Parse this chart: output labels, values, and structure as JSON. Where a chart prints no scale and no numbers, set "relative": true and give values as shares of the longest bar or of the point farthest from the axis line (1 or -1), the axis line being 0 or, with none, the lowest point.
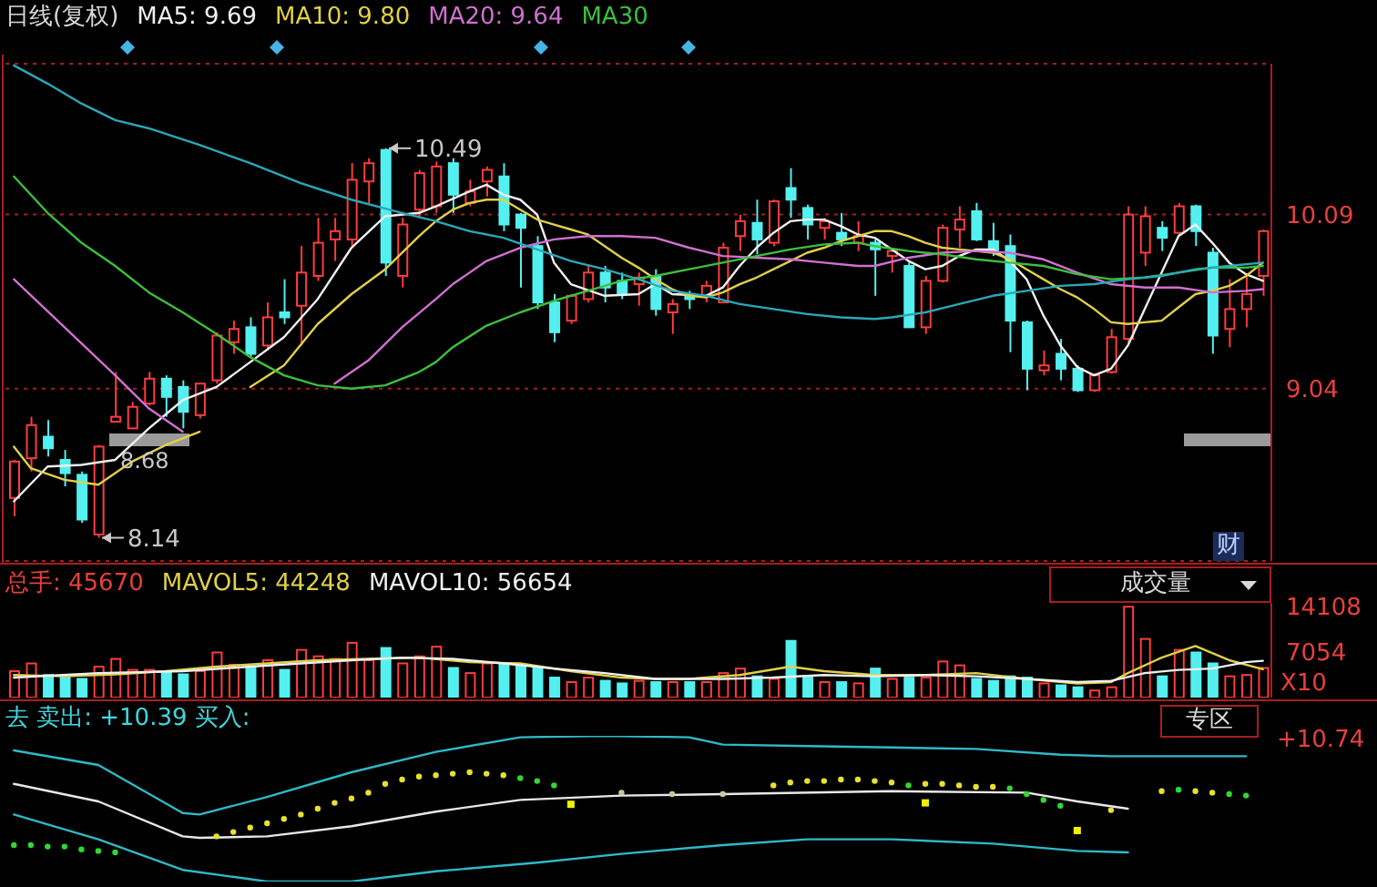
{
  "chart_data": [
    {
      "type": "candlestick",
      "title": "日线(复权)",
      "tick_labels": "y",
      "grid": "y",
      "legend": "top left",
      "ylim": [
        8.0,
        11.0
      ],
      "yticks": [
        9.04,
        10.09
      ],
      "categories": [
        null,
        null,
        null,
        null,
        null,
        null,
        null,
        null,
        null,
        null,
        null,
        null,
        null,
        null,
        null,
        null,
        null,
        null,
        null,
        null,
        null,
        null,
        null,
        null,
        null,
        null,
        null,
        null,
        null,
        null,
        null,
        null,
        null,
        null,
        null,
        null,
        null,
        null,
        null,
        null,
        null,
        null,
        null,
        null,
        null,
        null,
        null,
        null,
        null,
        null,
        null,
        null,
        null,
        null,
        null,
        null,
        null,
        null,
        null,
        null,
        null,
        null,
        null,
        null,
        null,
        null,
        null,
        null,
        null,
        null,
        null,
        null,
        null,
        null,
        null
      ],
      "ohlc": [
        [
          8.38,
          8.61,
          8.27,
          8.6
        ],
        [
          8.62,
          8.87,
          8.54,
          8.82
        ],
        [
          8.75,
          8.85,
          8.63,
          8.68
        ],
        [
          8.61,
          8.67,
          8.45,
          8.53
        ],
        [
          8.52,
          8.54,
          8.23,
          8.25
        ],
        [
          8.16,
          8.7,
          8.14,
          8.69
        ],
        [
          8.84,
          9.14,
          8.84,
          8.87
        ],
        [
          8.8,
          8.96,
          8.8,
          8.93
        ],
        [
          8.95,
          9.14,
          8.94,
          9.1
        ],
        [
          9.1,
          9.12,
          8.87,
          8.99
        ],
        [
          9.05,
          9.09,
          8.8,
          8.9
        ],
        [
          8.88,
          9.07,
          8.86,
          9.07
        ],
        [
          9.09,
          9.38,
          9.07,
          9.36
        ],
        [
          9.32,
          9.45,
          9.25,
          9.4
        ],
        [
          9.41,
          9.47,
          9.23,
          9.25
        ],
        [
          9.3,
          9.56,
          9.27,
          9.47
        ],
        [
          9.5,
          9.7,
          9.43,
          9.47
        ],
        [
          9.54,
          9.9,
          9.3,
          9.74
        ],
        [
          9.72,
          10.07,
          9.69,
          9.92
        ],
        [
          9.94,
          10.07,
          9.81,
          9.99
        ],
        [
          9.94,
          10.4,
          9.9,
          10.3
        ],
        [
          10.29,
          10.43,
          10.16,
          10.4
        ],
        [
          10.48,
          10.49,
          9.72,
          9.8
        ],
        [
          9.72,
          10.07,
          9.65,
          10.03
        ],
        [
          10.12,
          10.36,
          10.07,
          10.34
        ],
        [
          10.14,
          10.41,
          10.1,
          10.38
        ],
        [
          10.4,
          10.43,
          10.1,
          10.21
        ],
        [
          10.16,
          10.3,
          10.14,
          10.23
        ],
        [
          10.29,
          10.38,
          10.2,
          10.36
        ],
        [
          10.32,
          10.4,
          9.99,
          10.03
        ],
        [
          10.09,
          10.1,
          9.65,
          10.01
        ],
        [
          9.9,
          9.96,
          9.52,
          9.56
        ],
        [
          9.56,
          9.61,
          9.32,
          9.38
        ],
        [
          9.45,
          9.61,
          9.43,
          9.6
        ],
        [
          9.58,
          9.78,
          9.56,
          9.74
        ],
        [
          9.74,
          9.78,
          9.56,
          9.65
        ],
        [
          9.69,
          9.74,
          9.58,
          9.61
        ],
        [
          9.67,
          9.74,
          9.54,
          9.71
        ],
        [
          9.72,
          9.76,
          9.48,
          9.52
        ],
        [
          9.5,
          9.58,
          9.37,
          9.55
        ],
        [
          9.61,
          9.63,
          9.52,
          9.58
        ],
        [
          9.6,
          9.69,
          9.56,
          9.66
        ],
        [
          9.56,
          9.92,
          9.56,
          9.89
        ],
        [
          9.96,
          10.09,
          9.87,
          10.05
        ],
        [
          10.04,
          10.18,
          9.85,
          9.94
        ],
        [
          9.92,
          10.18,
          9.9,
          10.17
        ],
        [
          10.25,
          10.37,
          10.07,
          10.18
        ],
        [
          10.13,
          10.15,
          9.94,
          10.03
        ],
        [
          10.01,
          10.07,
          9.94,
          10.05
        ],
        [
          9.98,
          10.1,
          9.9,
          9.94
        ],
        [
          9.92,
          10.05,
          9.87,
          9.96
        ],
        [
          9.92,
          9.94,
          9.6,
          9.88
        ],
        [
          9.84,
          9.89,
          9.74,
          9.87
        ],
        [
          9.78,
          9.8,
          9.41,
          9.41
        ],
        [
          9.41,
          9.72,
          9.37,
          9.69
        ],
        [
          9.69,
          10.03,
          9.68,
          10.01
        ],
        [
          10.0,
          10.14,
          9.89,
          10.06
        ],
        [
          10.11,
          10.16,
          9.93,
          9.94
        ],
        [
          9.93,
          10.04,
          9.84,
          9.87
        ],
        [
          9.9,
          9.97,
          9.26,
          9.45
        ],
        [
          9.44,
          9.45,
          9.03,
          9.16
        ],
        [
          9.15,
          9.27,
          9.12,
          9.18
        ],
        [
          9.25,
          9.34,
          9.09,
          9.16
        ],
        [
          9.16,
          9.18,
          9.02,
          9.03
        ],
        [
          9.03,
          9.13,
          9.02,
          9.12
        ],
        [
          9.14,
          9.4,
          9.13,
          9.35
        ],
        [
          9.34,
          10.14,
          9.32,
          10.09
        ],
        [
          9.86,
          10.14,
          9.78,
          10.08
        ],
        [
          10.01,
          10.05,
          9.87,
          9.95
        ],
        [
          9.98,
          10.16,
          9.96,
          10.14
        ],
        [
          10.14,
          10.15,
          9.9,
          9.99
        ],
        [
          9.86,
          9.89,
          9.25,
          9.36
        ],
        [
          9.4,
          9.7,
          9.29,
          9.52
        ],
        [
          9.52,
          9.72,
          9.41,
          9.61
        ],
        [
          9.72,
          10.0,
          9.6,
          9.99
        ]
      ],
      "colors": [
        "#ff3c3c",
        "#ff3c3c",
        "#54f0f0",
        "#54f0f0",
        "#54f0f0",
        "#ff3c3c",
        "#ff3c3c",
        "#ff3c3c",
        "#ff3c3c",
        "#54f0f0",
        "#54f0f0",
        "#ff3c3c",
        "#ff3c3c",
        "#ff3c3c",
        "#54f0f0",
        "#ff3c3c",
        "#54f0f0",
        "#ff3c3c",
        "#ff3c3c",
        "#ff3c3c",
        "#ff3c3c",
        "#ff3c3c",
        "#54f0f0",
        "#ff3c3c",
        "#ff3c3c",
        "#ff3c3c",
        "#54f0f0",
        "#ff3c3c",
        "#ff3c3c",
        "#54f0f0",
        "#54f0f0",
        "#54f0f0",
        "#54f0f0",
        "#ff3c3c",
        "#ff3c3c",
        "#54f0f0",
        "#54f0f0",
        "#ff3c3c",
        "#54f0f0",
        "#ff3c3c",
        "#54f0f0",
        "#ff3c3c",
        "#ff3c3c",
        "#ff3c3c",
        "#54f0f0",
        "#ff3c3c",
        "#54f0f0",
        "#54f0f0",
        "#ff3c3c",
        "#54f0f0",
        "#ff3c3c",
        "#54f0f0",
        "#ff3c3c",
        "#54f0f0",
        "#ff3c3c",
        "#ff3c3c",
        "#ff3c3c",
        "#54f0f0",
        "#54f0f0",
        "#54f0f0",
        "#54f0f0",
        "#ff3c3c",
        "#54f0f0",
        "#54f0f0",
        "#ff3c3c",
        "#ff3c3c",
        "#ff3c3c",
        "#ff3c3c",
        "#54f0f0",
        "#ff3c3c",
        "#54f0f0",
        "#54f0f0",
        "#ff3c3c",
        "#ff3c3c",
        "#ff3c3c"
      ],
      "series": [
        {
          "type": "line",
          "name": "MA5: 9.69",
          "color": "#f0f0f0",
          "values": [
            8.36,
            null,
            8.57,
            null,
            8.58,
            null,
            8.61,
            null,
            8.8,
            null,
            8.97,
            null,
            9.05,
            null,
            9.2,
            null,
            9.35,
            null,
            9.58,
            null,
            9.89,
            null,
            10.08,
            null,
            10.1,
            10.14,
            null,
            10.23,
            10.27,
            10.21,
            10.18,
            10.09,
            9.8,
            9.67,
            null,
            9.6,
            null,
            9.61,
            9.67,
            9.61,
            null,
            9.6,
            9.65,
            9.78,
            9.89,
            9.98,
            10.05,
            10.06,
            10.06,
            10.02,
            9.97,
            9.95,
            null,
            9.81,
            9.76,
            9.78,
            9.84,
            9.88,
            9.88,
            9.81,
            9.7,
            9.48,
            9.3,
            9.17,
            9.12,
            9.16,
            9.3,
            9.52,
            9.74,
            9.96,
            10.03,
            9.92,
            9.8,
            9.73,
            9.69
          ]
        },
        {
          "type": "line",
          "name": "MA10: 9.80",
          "color": "#e0d048",
          "values": [
            null,
            null,
            null,
            null,
            null,
            null,
            null,
            null,
            null,
            null,
            null,
            null,
            null,
            null,
            9.05,
            null,
            9.18,
            null,
            9.43,
            null,
            9.61,
            null,
            9.76,
            null,
            9.96,
            10.05,
            10.12,
            10.16,
            10.18,
            10.18,
            10.12,
            10.06,
            10.03,
            10.0,
            9.97,
            9.9,
            9.83,
            9.77,
            9.7,
            9.64,
            9.6,
            9.59,
            9.62,
            9.67,
            9.71,
            9.76,
            9.81,
            9.86,
            9.89,
            9.93,
            9.96,
            9.99,
            9.99,
            9.96,
            9.92,
            9.89,
            9.88,
            9.87,
            9.86,
            9.82,
            9.76,
            9.7,
            9.64,
            9.59,
            9.52,
            9.44,
            9.43,
            9.44,
            9.45,
            9.53,
            9.61,
            9.63,
            9.66,
            9.72,
            9.8
          ]
        },
        {
          "type": "line",
          "color": "#e0d048",
          "values": [
            8.69,
            8.56,
            null,
            8.49,
            null,
            8.46,
            null,
            8.6,
            null,
            8.7,
            null,
            8.78,
            null,
            null,
            null,
            null,
            null,
            null,
            null,
            null,
            null,
            null,
            null,
            null,
            null,
            null,
            null,
            null,
            null,
            null,
            null,
            null,
            null,
            null,
            null,
            null,
            null,
            null,
            null,
            null,
            null,
            null,
            null,
            null,
            null,
            null,
            null,
            null,
            null,
            null,
            null,
            null,
            null,
            null,
            null,
            null,
            null,
            null,
            null,
            null,
            null,
            null,
            null,
            null,
            null,
            null,
            null,
            null,
            null,
            null,
            null,
            null,
            null,
            null,
            null
          ]
        },
        {
          "type": "line",
          "name": "MA20: 9.64",
          "color": "#d070d0",
          "values": [
            null,
            null,
            null,
            null,
            null,
            null,
            null,
            null,
            null,
            null,
            null,
            null,
            null,
            null,
            null,
            null,
            null,
            null,
            null,
            9.07,
            null,
            9.21,
            null,
            9.41,
            null,
            9.58,
            9.67,
            null,
            9.81,
            null,
            9.89,
            null,
            9.94,
            null,
            9.96,
            null,
            9.96,
            null,
            9.95,
            null,
            9.89,
            null,
            9.84,
            null,
            9.83,
            null,
            9.82,
            null,
            9.8,
            null,
            9.78,
            9.78,
            null,
            9.83,
            null,
            9.86,
            null,
            9.87,
            null,
            9.86,
            null,
            9.82,
            null,
            9.74,
            null,
            9.67,
            null,
            9.65,
            null,
            9.65,
            null,
            9.62,
            null,
            9.63,
            9.64
          ]
        },
        {
          "type": "line",
          "color": "#d070d0",
          "values": [
            9.7,
            null,
            null,
            9.41,
            null,
            null,
            9.12,
            null,
            8.92,
            null,
            8.78,
            null,
            null,
            null,
            null,
            null,
            null,
            null,
            null,
            null,
            null,
            null,
            null,
            null,
            null,
            null,
            null,
            null,
            null,
            null,
            null,
            null,
            null,
            null,
            null,
            null,
            null,
            null,
            null,
            null,
            null,
            null,
            null,
            null,
            null,
            null,
            null,
            null,
            null,
            null,
            null,
            null,
            null,
            null,
            null,
            null,
            null,
            null,
            null,
            null,
            null,
            null,
            null,
            null,
            null,
            null,
            null,
            null,
            null,
            null,
            null,
            null,
            null,
            null,
            null
          ]
        },
        {
          "type": "line",
          "name": "MA30",
          "color": "#3cc03c",
          "values": [
            10.32,
            null,
            10.1,
            null,
            9.92,
            null,
            9.78,
            null,
            9.62,
            null,
            9.5,
            null,
            9.37,
            null,
            9.23,
            null,
            9.12,
            null,
            9.06,
            null,
            9.04,
            null,
            9.06,
            null,
            9.14,
            9.2,
            9.29,
            null,
            9.42,
            null,
            9.5,
            null,
            9.57,
            null,
            9.63,
            null,
            9.69,
            null,
            9.72,
            null,
            9.76,
            null,
            9.8,
            null,
            9.84,
            null,
            9.88,
            null,
            9.91,
            null,
            9.92,
            9.9,
            null,
            9.87,
            null,
            9.85,
            null,
            9.82,
            null,
            9.8,
            null,
            9.78,
            null,
            9.73,
            null,
            9.7,
            null,
            9.71,
            null,
            9.74,
            null,
            9.77,
            null,
            9.77,
            9.78
          ]
        },
        {
          "type": "line",
          "color": "#2aa8b8",
          "values": [
            10.99,
            null,
            10.88,
            null,
            10.76,
            null,
            10.66,
            null,
            10.61,
            null,
            null,
            10.51,
            null,
            null,
            10.4,
            null,
            null,
            10.28,
            null,
            null,
            10.18,
            null,
            null,
            10.1,
            null,
            10.05,
            null,
            9.99,
            null,
            9.95,
            null,
            9.88,
            null,
            9.81,
            null,
            9.76,
            null,
            9.7,
            null,
            9.63,
            null,
            9.6,
            null,
            9.55,
            null,
            9.52,
            null,
            9.49,
            null,
            9.47,
            null,
            9.46,
            9.47,
            null,
            9.5,
            null,
            9.55,
            null,
            9.6,
            null,
            9.63,
            null,
            9.66,
            null,
            9.67,
            null,
            9.7,
            null,
            9.72,
            null,
            9.76,
            null,
            9.78,
            null,
            9.8
          ]
        }
      ],
      "annotations": [
        "10.49",
        "8.14",
        "8.68",
        "财"
      ]
    },
    {
      "type": "bar",
      "title": "总手: 45670",
      "ylabel": "X10",
      "tick_labels": "y",
      "legend": "top left",
      "ylim": [
        0,
        14700
      ],
      "yticks": [
        7054,
        14108
      ],
      "categories": [
        null,
        null,
        null,
        null,
        null,
        null,
        null,
        null,
        null,
        null,
        null,
        null,
        null,
        null,
        null,
        null,
        null,
        null,
        null,
        null,
        null,
        null,
        null,
        null,
        null,
        null,
        null,
        null,
        null,
        null,
        null,
        null,
        null,
        null,
        null,
        null,
        null,
        null,
        null,
        null,
        null,
        null,
        null,
        null,
        null,
        null,
        null,
        null,
        null,
        null,
        null,
        null,
        null,
        null,
        null,
        null,
        null,
        null,
        null,
        null,
        null,
        null,
        null,
        null,
        null,
        null,
        null,
        null,
        null,
        null,
        null,
        null,
        null,
        null,
        null
      ],
      "series": [
        {
          "values": [
            4100,
            5300,
            3500,
            3100,
            2900,
            4800,
            6000,
            4300,
            4300,
            4100,
            3600,
            4100,
            7000,
            5100,
            4800,
            5800,
            4300,
            7400,
            6400,
            6000,
            8500,
            5800,
            7700,
            5300,
            6400,
            7900,
            4600,
            3800,
            5300,
            5300,
            5100,
            4800,
            3100,
            2400,
            3100,
            2600,
            2200,
            2600,
            2400,
            2400,
            2400,
            2400,
            3800,
            4500,
            3300,
            2900,
            8800,
            3100,
            2400,
            2400,
            2200,
            4500,
            2900,
            3100,
            3100,
            5600,
            5000,
            2900,
            2600,
            3300,
            3100,
            2200,
            1900,
            1600,
            1100,
            1600,
            14100,
            9100,
            3300,
            7400,
            7000,
            5300,
            3300,
            3500,
            4600
          ],
          "colors": [
            "#ff3c3c",
            "#ff3c3c",
            "#54f0f0",
            "#54f0f0",
            "#54f0f0",
            "#ff3c3c",
            "#ff3c3c",
            "#ff3c3c",
            "#ff3c3c",
            "#54f0f0",
            "#54f0f0",
            "#ff3c3c",
            "#ff3c3c",
            "#ff3c3c",
            "#54f0f0",
            "#ff3c3c",
            "#54f0f0",
            "#ff3c3c",
            "#ff3c3c",
            "#ff3c3c",
            "#ff3c3c",
            "#ff3c3c",
            "#54f0f0",
            "#ff3c3c",
            "#ff3c3c",
            "#ff3c3c",
            "#54f0f0",
            "#ff3c3c",
            "#ff3c3c",
            "#54f0f0",
            "#54f0f0",
            "#54f0f0",
            "#54f0f0",
            "#ff3c3c",
            "#ff3c3c",
            "#54f0f0",
            "#54f0f0",
            "#ff3c3c",
            "#54f0f0",
            "#ff3c3c",
            "#54f0f0",
            "#ff3c3c",
            "#ff3c3c",
            "#ff3c3c",
            "#54f0f0",
            "#ff3c3c",
            "#54f0f0",
            "#54f0f0",
            "#ff3c3c",
            "#54f0f0",
            "#ff3c3c",
            "#54f0f0",
            "#ff3c3c",
            "#54f0f0",
            "#ff3c3c",
            "#ff3c3c",
            "#ff3c3c",
            "#54f0f0",
            "#54f0f0",
            "#54f0f0",
            "#54f0f0",
            "#ff3c3c",
            "#54f0f0",
            "#54f0f0",
            "#ff3c3c",
            "#ff3c3c",
            "#ff3c3c",
            "#ff3c3c",
            "#54f0f0",
            "#ff3c3c",
            "#54f0f0",
            "#54f0f0",
            "#ff3c3c",
            "#ff3c3c",
            "#ff3c3c"
          ]
        },
        {
          "type": "line",
          "name": "MAVOL5: 44248",
          "color": "#e0d048",
          "values": [
            3500,
            null,
            null,
            3300,
            null,
            null,
            3600,
            null,
            null,
            4100,
            null,
            null,
            4800,
            null,
            null,
            5300,
            null,
            null,
            5800,
            null,
            null,
            6000,
            null,
            null,
            6200,
            null,
            null,
            5500,
            null,
            null,
            5300,
            null,
            null,
            4100,
            null,
            null,
            3100,
            null,
            2900,
            null,
            2900,
            null,
            null,
            3500,
            null,
            null,
            4800,
            null,
            4100,
            null,
            null,
            3500,
            null,
            null,
            3500,
            null,
            null,
            3800,
            null,
            null,
            2900,
            null,
            null,
            2200,
            null,
            2400,
            3800,
            null,
            6200,
            null,
            8000,
            null,
            5800,
            null,
            4400
          ]
        },
        {
          "type": "line",
          "name": "MAVOL10: 56654",
          "color": "#f0f0f0",
          "values": [
            3100,
            null,
            null,
            null,
            null,
            3800,
            null,
            null,
            null,
            null,
            4100,
            null,
            null,
            null,
            4800,
            null,
            null,
            5300,
            null,
            null,
            5800,
            null,
            null,
            6200,
            null,
            null,
            6000,
            null,
            null,
            5300,
            null,
            null,
            4500,
            null,
            null,
            3800,
            null,
            null,
            2900,
            null,
            null,
            null,
            2900,
            null,
            null,
            3100,
            null,
            null,
            3500,
            null,
            null,
            3300,
            null,
            null,
            3500,
            null,
            null,
            3300,
            null,
            null,
            2900,
            null,
            null,
            2400,
            null,
            2600,
            null,
            3800,
            null,
            4300,
            null,
            4500,
            null,
            5500,
            5700
          ]
        }
      ],
      "annotations": [
        "成交量"
      ]
    },
    {
      "type": "line",
      "title": "去 卖出: +10.39 买入:",
      "relative": true,
      "tick_labels": false,
      "categories": [
        null,
        null,
        null,
        null,
        null,
        null,
        null,
        null,
        null,
        null,
        null,
        null,
        null,
        null,
        null,
        null,
        null,
        null,
        null,
        null,
        null,
        null,
        null,
        null,
        null,
        null,
        null,
        null,
        null,
        null,
        null,
        null,
        null,
        null,
        null,
        null,
        null,
        null,
        null,
        null,
        null,
        null,
        null,
        null,
        null,
        null,
        null,
        null,
        null,
        null,
        null,
        null,
        null,
        null,
        null,
        null,
        null,
        null,
        null,
        null,
        null,
        null,
        null,
        null,
        null,
        null,
        null,
        null,
        null,
        null,
        null,
        null,
        null,
        null,
        null
      ],
      "series": [
        {
          "color": "#30b8c8",
          "values": [
            0.9,
            null,
            null,
            null,
            null,
            0.8,
            null,
            null,
            null,
            null,
            0.47,
            0.46,
            null,
            null,
            null,
            0.58,
            null,
            null,
            null,
            null,
            0.75,
            null,
            null,
            null,
            null,
            0.89,
            null,
            null,
            null,
            null,
            0.99,
            null,
            null,
            null,
            null,
            1.0,
            null,
            null,
            null,
            null,
            0.99,
            null,
            0.94,
            null,
            null,
            null,
            null,
            0.93,
            null,
            null,
            null,
            null,
            0.92,
            null,
            null,
            null,
            null,
            0.91,
            null,
            null,
            null,
            null,
            0.87,
            null,
            null,
            0.86,
            null,
            null,
            null,
            null,
            null,
            null,
            null,
            0.86,
            null
          ]
        },
        {
          "color": "#e8e8e8",
          "values": [
            0.67,
            null,
            null,
            null,
            null,
            0.55,
            null,
            null,
            null,
            null,
            0.31,
            0.3,
            null,
            null,
            null,
            0.31,
            null,
            null,
            null,
            null,
            0.38,
            null,
            null,
            null,
            null,
            0.48,
            null,
            null,
            null,
            null,
            0.56,
            null,
            null,
            null,
            null,
            null,
            0.59,
            null,
            null,
            null,
            null,
            null,
            0.6,
            null,
            null,
            null,
            null,
            null,
            null,
            null,
            null,
            null,
            0.62,
            null,
            null,
            null,
            null,
            null,
            null,
            null,
            0.61,
            null,
            null,
            0.55,
            null,
            null,
            0.5,
            null,
            null,
            null,
            null,
            null,
            null,
            null,
            null
          ]
        },
        {
          "color": "#30b8c8",
          "values": [
            0.46,
            null,
            null,
            null,
            null,
            0.29,
            null,
            null,
            null,
            null,
            0.08,
            null,
            null,
            null,
            null,
            0,
            null,
            null,
            null,
            null,
            0,
            null,
            null,
            null,
            null,
            0.07,
            null,
            null,
            null,
            null,
            null,
            0.13,
            null,
            null,
            null,
            null,
            0.19,
            null,
            null,
            null,
            null,
            null,
            0.25,
            null,
            null,
            null,
            null,
            0.29,
            null,
            null,
            null,
            null,
            0.29,
            null,
            null,
            null,
            null,
            null,
            0.26,
            null,
            null,
            null,
            null,
            0.21,
            null,
            null,
            0.2,
            null,
            null,
            null,
            null,
            null,
            null,
            null,
            null
          ]
        },
        {
          "type": "scatter",
          "values": [
            0.25,
            0.25,
            0.24,
            0.24,
            0.22,
            0.21,
            0.2,
            null,
            null,
            null,
            null,
            null,
            0.31,
            0.34,
            0.37,
            0.4,
            0.43,
            0.46,
            0.5,
            0.54,
            0.57,
            0.61,
            0.67,
            0.7,
            0.72,
            0.73,
            0.74,
            0.75,
            0.74,
            0.73,
            0.71,
            0.69,
            0.66,
            null,
            null,
            null,
            0.61,
            null,
            null,
            0.6,
            null,
            null,
            0.6,
            null,
            null,
            0.66,
            0.68,
            0.69,
            0.69,
            0.7,
            0.7,
            0.69,
            0.68,
            0.66,
            0.67,
            0.67,
            0.66,
            0.65,
            0.65,
            0.64,
            0.6,
            0.56,
            0.52,
            null,
            null,
            0.49,
            null,
            null,
            0.62,
            0.63,
            0.62,
            0.61,
            0.6,
            0.59,
            null
          ],
          "colors": [
            "#30d830",
            "#30d830",
            "#30d830",
            "#30d830",
            "#30d830",
            "#30d830",
            "#30d830",
            null,
            null,
            null,
            null,
            null,
            "#e8e030",
            "#e8e030",
            "#e8e030",
            "#e8e030",
            "#e8e030",
            "#e8e030",
            "#e8e030",
            "#e8e030",
            "#e8e030",
            "#e8e030",
            "#e8e030",
            "#e8e030",
            "#e8e030",
            "#e8e030",
            "#e8e030",
            "#e8e030",
            "#e8e030",
            "#e8e030",
            "#30d830",
            "#30d830",
            "#30d830",
            null,
            null,
            null,
            "#c8c8a0",
            null,
            null,
            "#c8c8a0",
            null,
            null,
            "#c8c8a0",
            null,
            null,
            "#e8e030",
            "#e8e030",
            "#e8e030",
            "#e8e030",
            "#e8e030",
            "#e8e030",
            "#e8e030",
            "#e8e030",
            "#30d830",
            "#e8e030",
            "#e8e030",
            "#e8e030",
            "#e8e030",
            "#e8e030",
            "#30d830",
            "#30d830",
            "#30d830",
            "#30d830",
            null,
            null,
            "#e8e030",
            null,
            null,
            "#e8e030",
            "#30d830",
            "#e8e030",
            "#e8e030",
            "#30d830",
            "#30d830",
            null
          ]
        },
        {
          "type": "scatter",
          "marker": "square",
          "color": "#f0f000",
          "values": [
            null,
            null,
            null,
            null,
            null,
            null,
            null,
            null,
            null,
            null,
            null,
            null,
            null,
            null,
            null,
            null,
            null,
            null,
            null,
            null,
            null,
            null,
            null,
            null,
            null,
            null,
            null,
            null,
            null,
            null,
            null,
            null,
            null,
            0.53,
            null,
            null,
            null,
            null,
            null,
            null,
            null,
            null,
            null,
            null,
            null,
            null,
            null,
            null,
            null,
            null,
            null,
            null,
            null,
            null,
            0.54,
            null,
            null,
            null,
            null,
            null,
            null,
            null,
            null,
            0.35,
            null,
            null,
            null,
            null,
            null,
            null,
            null,
            null,
            null,
            null,
            null
          ]
        }
      ],
      "annotations": [
        "专区",
        "+10.74"
      ]
    }
  ]
}
